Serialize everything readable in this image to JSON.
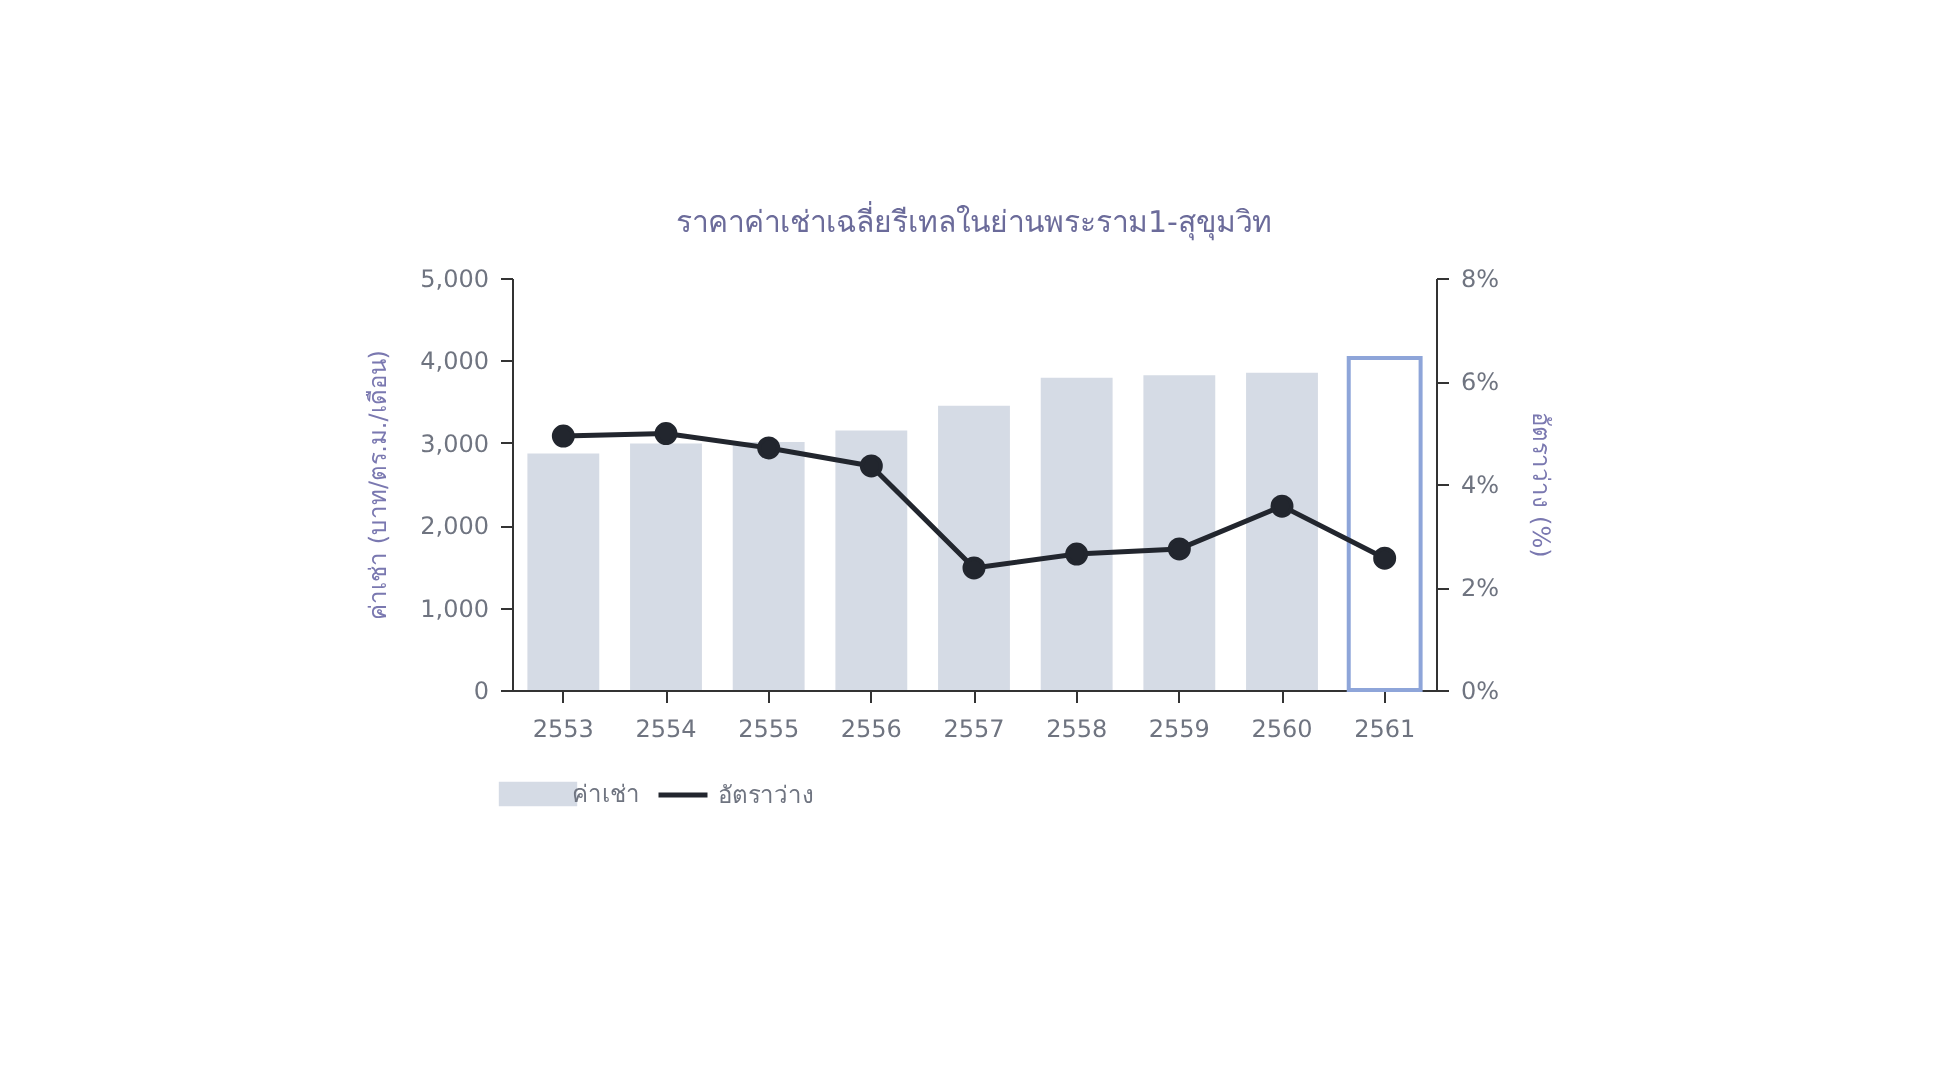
{
  "chart_data": {
    "type": "bar",
    "title": "ราคาค่าเช่าเฉลี่ยรีเทลในย่านพระราม1-สุขุมวิท",
    "ylabel": "ค่าเช่า (บาท/ตร.ม./เดือน)",
    "y2label": "อัตราว่าง (%)",
    "categories": [
      "2553",
      "2554",
      "2555",
      "2556",
      "2557",
      "2558",
      "2559",
      "2560",
      "2561"
    ],
    "series": [
      {
        "name": "ค่าเช่า",
        "color": "#d5dbe5",
        "colors": [
          "#d5dbe5",
          "#d5dbe5",
          "#d5dbe5",
          "#d5dbe5",
          "#d5dbe5",
          "#d5dbe5",
          "#d5dbe5",
          "#d5dbe5",
          "#8ea5d9"
        ],
        "values": [
          2870,
          2990,
          3010,
          3150,
          3450,
          3790,
          3820,
          3850,
          4030
        ]
      },
      {
        "name": "อัตราว่าง",
        "type": "line",
        "axis": "y2",
        "color": "#22262e",
        "marker": "circle",
        "values": [
          4.93,
          4.98,
          4.7,
          4.35,
          2.37,
          2.64,
          2.74,
          3.57,
          2.56
        ]
      }
    ],
    "ylim": [
      0,
      5000
    ],
    "yticks": [
      0,
      {
        "value": 1000,
        "label": "1,000"
      },
      {
        "value": 2000,
        "label": "2,000"
      },
      {
        "value": 3000,
        "label": "3,000"
      },
      {
        "value": 4000,
        "label": "4,000"
      },
      {
        "value": 5000,
        "label": "5,000"
      }
    ],
    "y2lim": [
      0,
      8
    ],
    "y2ticks": [
      {
        "value": 0,
        "label": "0%"
      },
      {
        "value": 2,
        "label": "2%"
      },
      {
        "value": 4,
        "label": "4%"
      },
      {
        "value": 6,
        "label": "6%"
      },
      {
        "value": 8,
        "label": "8%"
      }
    ],
    "grid": false,
    "legend": "bottom"
  }
}
